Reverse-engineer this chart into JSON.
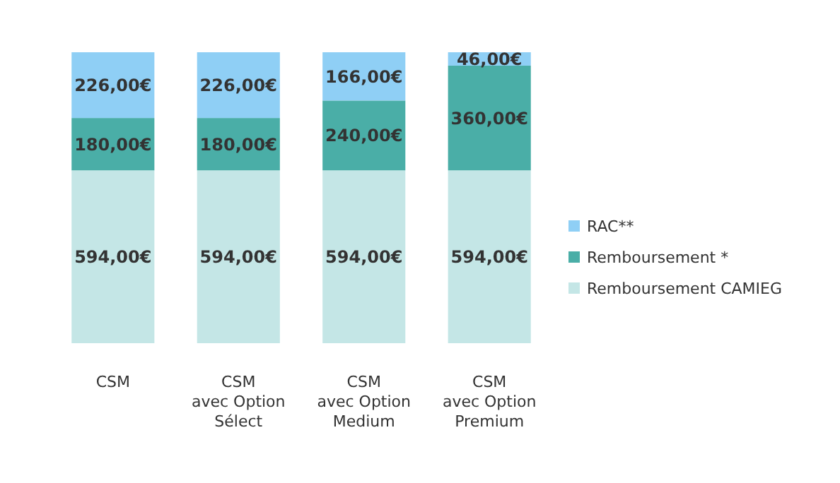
{
  "chart_data": {
    "type": "bar",
    "stacked": true,
    "legend": "right",
    "categories": [
      "CSM",
      "CSM\navec Option\nSélect",
      "CSM\navec Option\nMedium",
      "CSM\navec Option\nPremium"
    ],
    "series": [
      {
        "name": "Remboursement CAMIEG",
        "color": "#c4e6e6",
        "values": [
          594,
          594,
          594,
          594
        ],
        "value_labels": [
          "594,00€",
          "594,00€",
          "594,00€",
          "594,00€"
        ]
      },
      {
        "name": "Remboursement *",
        "color": "#4aaea7",
        "values": [
          180,
          180,
          240,
          360
        ],
        "value_labels": [
          "180,00€",
          "180,00€",
          "240,00€",
          "360,00€"
        ]
      },
      {
        "name": "RAC**",
        "color": "#8fcff5",
        "values": [
          226,
          226,
          166,
          46
        ],
        "value_labels": [
          "226,00€",
          "226,00€",
          "166,00€",
          "46,00€"
        ]
      }
    ]
  }
}
